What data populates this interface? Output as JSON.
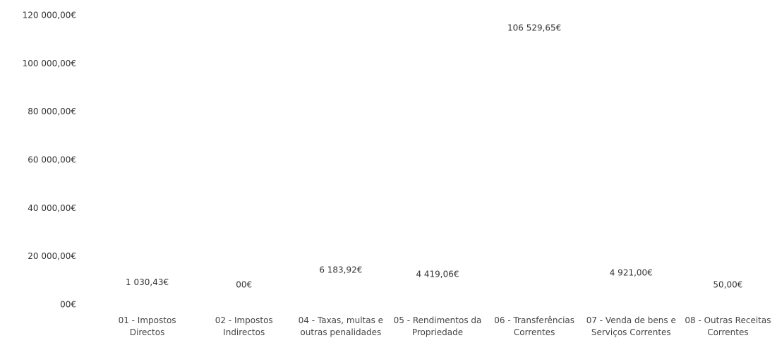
{
  "chart_data": {
    "type": "bar",
    "categories": [
      "01 - Impostos Directos",
      "02 - Impostos Indirectos",
      "04 - Taxas, multas e outras penalidades",
      "05 - Rendimentos da Propriedade",
      "06 - Transferências Correntes",
      "07 - Venda de bens e Serviços Correntes",
      "08 - Outras Receitas Correntes"
    ],
    "values": [
      1030.43,
      0,
      6183.92,
      4419.06,
      106529.65,
      4921,
      50
    ],
    "value_labels": [
      "1 030,43€",
      "00€",
      "6 183,92€",
      "4 419,06€",
      "106 529,65€",
      "4 921,00€",
      "50,00€"
    ],
    "color": "#ffffff",
    "ylim": [
      0,
      120000
    ],
    "yticks": [
      {
        "value": 0,
        "label": "00€"
      },
      {
        "value": 20000,
        "label": "20 000,00€"
      },
      {
        "value": 40000,
        "label": "40 000,00€"
      },
      {
        "value": 60000,
        "label": "60 000,00€"
      },
      {
        "value": 80000,
        "label": "80 000,00€"
      },
      {
        "value": 100000,
        "label": "100 000,00€"
      },
      {
        "value": 120000,
        "label": "120 000,00€"
      }
    ],
    "grid": false
  }
}
